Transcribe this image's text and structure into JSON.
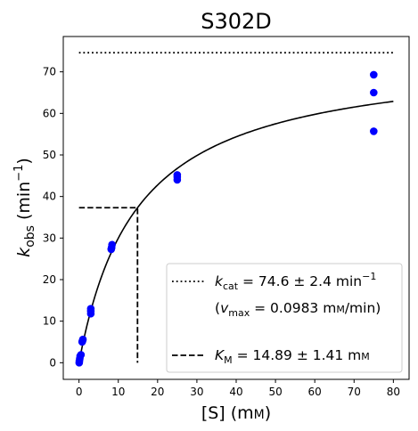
{
  "chart_data": {
    "type": "scatter",
    "title": "S302D",
    "xlabel": {
      "main": "[S] (m",
      "unit_smallcaps": "M",
      "close": ")"
    },
    "ylabel": {
      "k": "k",
      "sub": "obs",
      "unit": " (min",
      "sup": "−1",
      "close": ")"
    },
    "xlim": [
      -4,
      84
    ],
    "ylim": [
      -4,
      78.5
    ],
    "xticks": [
      0,
      10,
      20,
      30,
      40,
      50,
      60,
      70,
      80
    ],
    "yticks": [
      0,
      10,
      20,
      30,
      40,
      50,
      60,
      70
    ],
    "grid": false,
    "legend_position": "lower-right",
    "series": [
      {
        "kind": "scatter",
        "color": "#0000ff",
        "x": [
          0.05,
          0.1,
          0.2,
          0.3,
          0.5,
          0.8,
          0.9,
          1.0,
          3.0,
          3.0,
          3.0,
          8.2,
          8.3,
          8.4,
          25.0,
          25.0,
          25.0,
          75.0,
          75.0,
          75.0
        ],
        "y": [
          0.0,
          0.4,
          1.0,
          1.6,
          1.9,
          5.0,
          5.3,
          5.6,
          11.8,
          12.4,
          13.0,
          27.3,
          27.7,
          28.4,
          44.0,
          44.7,
          45.2,
          55.7,
          65.0,
          69.3
        ]
      },
      {
        "kind": "michaelis-menten-fit",
        "color": "#000000",
        "kcat": 74.6,
        "km": 14.89,
        "x_range": [
          0,
          80
        ]
      },
      {
        "kind": "kcat-line",
        "style": "dotted",
        "color": "#000000",
        "y": 74.6,
        "x_range": [
          0,
          80
        ]
      },
      {
        "kind": "km-guide",
        "style": "dashed",
        "color": "#000000",
        "km": 14.89,
        "half_y": 37.3
      }
    ],
    "legend": {
      "kcat": {
        "symbol": "k",
        "sub": "cat",
        "text": " = 74.6 ± 2.4 min",
        "sup": "−1"
      },
      "vmax": {
        "open": "(",
        "symbol": "v",
        "sub": "max",
        "text": " = 0.0983 m",
        "unit_smallcaps": "M",
        "text2": "/min)"
      },
      "km": {
        "symbol": "K",
        "sub": "M",
        "text": " = 14.89 ± 1.41 m",
        "unit_smallcaps": "M"
      }
    }
  }
}
